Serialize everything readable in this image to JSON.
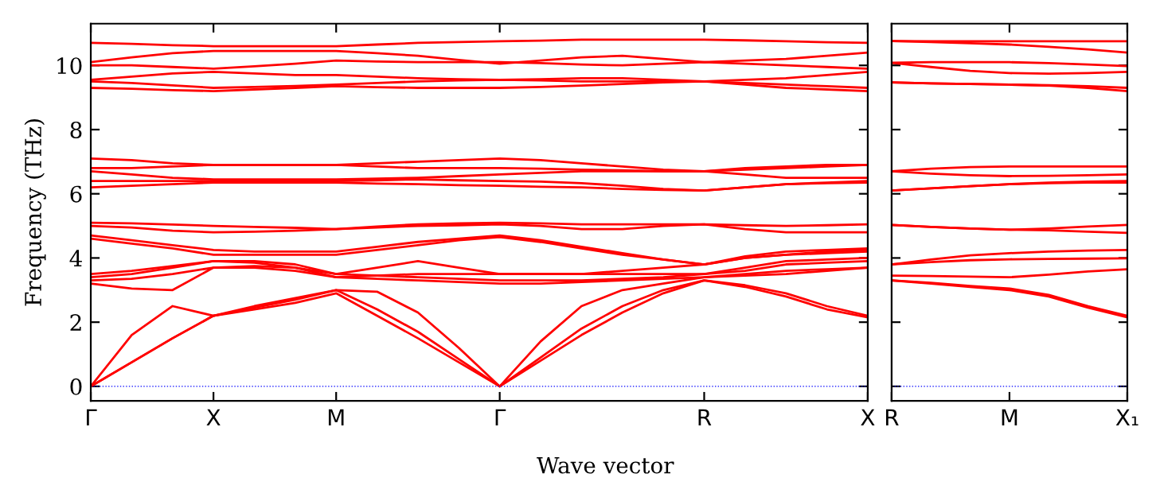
{
  "chart_data": [
    {
      "type": "line",
      "ylabel": "Frequency (THz)",
      "xlabel": "Wave vector",
      "categories": [
        "Γ",
        null,
        null,
        "X",
        null,
        null,
        "M",
        null,
        null,
        null,
        "Γ",
        null,
        null,
        null,
        null,
        "R",
        null,
        null,
        null,
        "X"
      ],
      "ylim": [
        -0.45,
        11.3
      ],
      "yticks": [
        0,
        2,
        4,
        6,
        8,
        10
      ],
      "line_style": "solid",
      "ref_lines": [
        {
          "axis": "y",
          "value": 0,
          "color": "#0000ff",
          "line_style": "dotted"
        }
      ],
      "series": [
        {
          "color": "#ff0000",
          "values": [
            0,
            0.75,
            1.5,
            2.2,
            2.4,
            2.6,
            2.9,
            2.2,
            1.5,
            0.75,
            0,
            0.8,
            1.6,
            2.3,
            2.9,
            3.3,
            3.1,
            2.8,
            2.4,
            2.15
          ]
        },
        {
          "color": "#ff0000",
          "values": [
            0,
            0.75,
            1.5,
            2.2,
            2.45,
            2.7,
            3.0,
            2.4,
            1.7,
            0.85,
            0,
            0.9,
            1.8,
            2.5,
            3.0,
            3.3,
            3.15,
            2.9,
            2.5,
            2.2
          ]
        },
        {
          "color": "#ff0000",
          "values": [
            0,
            1.6,
            2.5,
            2.2,
            2.5,
            2.75,
            3.0,
            2.95,
            2.3,
            1.2,
            0,
            1.4,
            2.5,
            3.0,
            3.2,
            3.4,
            3.45,
            3.5,
            3.6,
            3.7
          ]
        },
        {
          "color": "#ff0000",
          "values": [
            3.2,
            3.05,
            3.0,
            3.7,
            3.7,
            3.6,
            3.4,
            3.35,
            3.3,
            3.25,
            3.2,
            3.2,
            3.25,
            3.3,
            3.35,
            3.4,
            3.5,
            3.6,
            3.65,
            3.7
          ]
        },
        {
          "color": "#ff0000",
          "values": [
            3.3,
            3.35,
            3.5,
            3.7,
            3.75,
            3.7,
            3.5,
            3.45,
            3.4,
            3.35,
            3.3,
            3.3,
            3.3,
            3.35,
            3.4,
            3.5,
            3.6,
            3.8,
            3.85,
            3.9
          ]
        },
        {
          "color": "#ff0000",
          "values": [
            3.4,
            3.5,
            3.7,
            3.9,
            3.85,
            3.7,
            3.4,
            3.45,
            3.5,
            3.5,
            3.5,
            3.5,
            3.5,
            3.5,
            3.5,
            3.5,
            3.7,
            3.9,
            3.95,
            4.0
          ]
        },
        {
          "color": "#ff0000",
          "values": [
            3.5,
            3.6,
            3.75,
            3.9,
            3.9,
            3.8,
            3.5,
            3.7,
            3.9,
            3.7,
            3.5,
            3.5,
            3.5,
            3.6,
            3.7,
            3.8,
            4.0,
            4.1,
            4.15,
            4.2
          ]
        },
        {
          "color": "#ff0000",
          "values": [
            4.6,
            4.45,
            4.3,
            4.1,
            4.1,
            4.1,
            4.1,
            4.25,
            4.4,
            4.55,
            4.65,
            4.5,
            4.3,
            4.1,
            3.95,
            3.8,
            4.0,
            4.1,
            4.2,
            4.25
          ]
        },
        {
          "color": "#ff0000",
          "values": [
            4.7,
            4.55,
            4.4,
            4.25,
            4.2,
            4.2,
            4.2,
            4.35,
            4.5,
            4.6,
            4.7,
            4.55,
            4.35,
            4.15,
            3.95,
            3.8,
            4.05,
            4.2,
            4.25,
            4.3
          ]
        },
        {
          "color": "#ff0000",
          "values": [
            5.0,
            4.95,
            4.85,
            4.8,
            4.82,
            4.85,
            4.9,
            4.95,
            5.0,
            5.02,
            5.05,
            5.0,
            4.9,
            4.9,
            5.0,
            5.05,
            4.9,
            4.8,
            4.8,
            4.8
          ]
        },
        {
          "color": "#ff0000",
          "values": [
            5.1,
            5.08,
            5.04,
            5.0,
            4.97,
            4.94,
            4.9,
            4.98,
            5.05,
            5.08,
            5.1,
            5.08,
            5.05,
            5.05,
            5.05,
            5.05,
            5.02,
            5.0,
            5.02,
            5.05
          ]
        },
        {
          "color": "#ff0000",
          "values": [
            6.2,
            6.25,
            6.3,
            6.35,
            6.35,
            6.35,
            6.35,
            6.32,
            6.3,
            6.27,
            6.25,
            6.22,
            6.2,
            6.15,
            6.12,
            6.1,
            6.2,
            6.3,
            6.33,
            6.35
          ]
        },
        {
          "color": "#ff0000",
          "values": [
            6.4,
            6.4,
            6.4,
            6.4,
            6.4,
            6.4,
            6.4,
            6.42,
            6.45,
            6.42,
            6.4,
            6.38,
            6.33,
            6.25,
            6.15,
            6.1,
            6.2,
            6.3,
            6.35,
            6.4
          ]
        },
        {
          "color": "#ff0000",
          "values": [
            6.7,
            6.6,
            6.5,
            6.45,
            6.45,
            6.45,
            6.45,
            6.47,
            6.5,
            6.55,
            6.6,
            6.65,
            6.7,
            6.7,
            6.7,
            6.7,
            6.6,
            6.5,
            6.5,
            6.5
          ]
        },
        {
          "color": "#ff0000",
          "values": [
            6.8,
            6.8,
            6.85,
            6.9,
            6.9,
            6.9,
            6.9,
            6.85,
            6.8,
            6.8,
            6.8,
            6.78,
            6.75,
            6.73,
            6.7,
            6.7,
            6.75,
            6.8,
            6.85,
            6.9
          ]
        },
        {
          "color": "#ff0000",
          "values": [
            7.1,
            7.05,
            6.95,
            6.9,
            6.9,
            6.9,
            6.9,
            6.95,
            7.0,
            7.05,
            7.1,
            7.05,
            6.95,
            6.85,
            6.75,
            6.7,
            6.8,
            6.85,
            6.9,
            6.9
          ]
        },
        {
          "color": "#ff0000",
          "values": [
            9.3,
            9.27,
            9.23,
            9.2,
            9.25,
            9.3,
            9.35,
            9.32,
            9.3,
            9.3,
            9.3,
            9.33,
            9.37,
            9.42,
            9.47,
            9.5,
            9.4,
            9.3,
            9.25,
            9.2
          ]
        },
        {
          "color": "#ff0000",
          "values": [
            9.5,
            9.45,
            9.38,
            9.3,
            9.33,
            9.36,
            9.4,
            9.45,
            9.5,
            9.53,
            9.55,
            9.53,
            9.5,
            9.5,
            9.5,
            9.5,
            9.45,
            9.4,
            9.35,
            9.3
          ]
        },
        {
          "color": "#ff0000",
          "values": [
            9.55,
            9.65,
            9.75,
            9.8,
            9.75,
            9.7,
            9.7,
            9.65,
            9.6,
            9.57,
            9.55,
            9.57,
            9.6,
            9.6,
            9.55,
            9.5,
            9.55,
            9.6,
            9.7,
            9.8
          ]
        },
        {
          "color": "#ff0000",
          "values": [
            10.0,
            10.0,
            9.95,
            9.9,
            9.97,
            10.05,
            10.15,
            10.12,
            10.1,
            10.1,
            10.1,
            10.07,
            10.03,
            10.0,
            10.05,
            10.1,
            10.05,
            10.0,
            9.95,
            9.9
          ]
        },
        {
          "color": "#ff0000",
          "values": [
            10.1,
            10.25,
            10.38,
            10.45,
            10.45,
            10.45,
            10.45,
            10.38,
            10.3,
            10.17,
            10.05,
            10.15,
            10.25,
            10.3,
            10.2,
            10.1,
            10.15,
            10.2,
            10.3,
            10.4
          ]
        },
        {
          "color": "#ff0000",
          "values": [
            10.7,
            10.67,
            10.63,
            10.6,
            10.6,
            10.6,
            10.6,
            10.65,
            10.7,
            10.73,
            10.75,
            10.77,
            10.8,
            10.8,
            10.8,
            10.8,
            10.78,
            10.75,
            10.72,
            10.7
          ]
        }
      ]
    },
    {
      "type": "line",
      "categories": [
        "R",
        null,
        null,
        "M",
        null,
        null,
        "X₁"
      ],
      "ylim": [
        -0.45,
        11.3
      ],
      "yticks": [
        0,
        2,
        4,
        6,
        8,
        10
      ],
      "tick_labels": "x",
      "line_style": "solid",
      "ref_lines": [
        {
          "axis": "y",
          "value": 0,
          "color": "#0000ff",
          "line_style": "dotted"
        }
      ],
      "series": [
        {
          "color": "#ff0000",
          "values": [
            3.3,
            3.2,
            3.1,
            3.0,
            2.8,
            2.45,
            2.15
          ]
        },
        {
          "color": "#ff0000",
          "values": [
            3.3,
            3.23,
            3.13,
            3.05,
            2.85,
            2.5,
            2.2
          ]
        },
        {
          "color": "#ff0000",
          "values": [
            3.45,
            3.44,
            3.42,
            3.4,
            3.48,
            3.58,
            3.65
          ]
        },
        {
          "color": "#ff0000",
          "values": [
            3.8,
            3.87,
            3.93,
            3.96,
            3.97,
            3.98,
            3.99
          ]
        },
        {
          "color": "#ff0000",
          "values": [
            3.8,
            3.95,
            4.08,
            4.15,
            4.2,
            4.23,
            4.25
          ]
        },
        {
          "color": "#ff0000",
          "values": [
            5.03,
            4.97,
            4.92,
            4.88,
            4.86,
            4.82,
            4.78
          ]
        },
        {
          "color": "#ff0000",
          "values": [
            5.03,
            4.97,
            4.92,
            4.88,
            4.92,
            4.98,
            5.03
          ]
        },
        {
          "color": "#ff0000",
          "values": [
            6.1,
            6.17,
            6.24,
            6.3,
            6.33,
            6.35,
            6.35
          ]
        },
        {
          "color": "#ff0000",
          "values": [
            6.1,
            6.17,
            6.24,
            6.3,
            6.35,
            6.38,
            6.4
          ]
        },
        {
          "color": "#ff0000",
          "values": [
            6.7,
            6.63,
            6.58,
            6.55,
            6.56,
            6.58,
            6.6
          ]
        },
        {
          "color": "#ff0000",
          "values": [
            6.7,
            6.78,
            6.83,
            6.85,
            6.85,
            6.85,
            6.85
          ]
        },
        {
          "color": "#ff0000",
          "values": [
            9.47,
            9.44,
            9.42,
            9.4,
            9.37,
            9.3,
            9.2
          ]
        },
        {
          "color": "#ff0000",
          "values": [
            9.47,
            9.44,
            9.42,
            9.4,
            9.38,
            9.35,
            9.3
          ]
        },
        {
          "color": "#ff0000",
          "values": [
            10.08,
            9.95,
            9.83,
            9.76,
            9.74,
            9.76,
            9.8
          ]
        },
        {
          "color": "#ff0000",
          "values": [
            10.08,
            10.1,
            10.1,
            10.1,
            10.07,
            10.03,
            9.98
          ]
        },
        {
          "color": "#ff0000",
          "values": [
            10.76,
            10.73,
            10.69,
            10.65,
            10.58,
            10.5,
            10.4
          ]
        },
        {
          "color": "#ff0000",
          "values": [
            10.76,
            10.75,
            10.75,
            10.75,
            10.75,
            10.75,
            10.75
          ]
        }
      ]
    }
  ]
}
